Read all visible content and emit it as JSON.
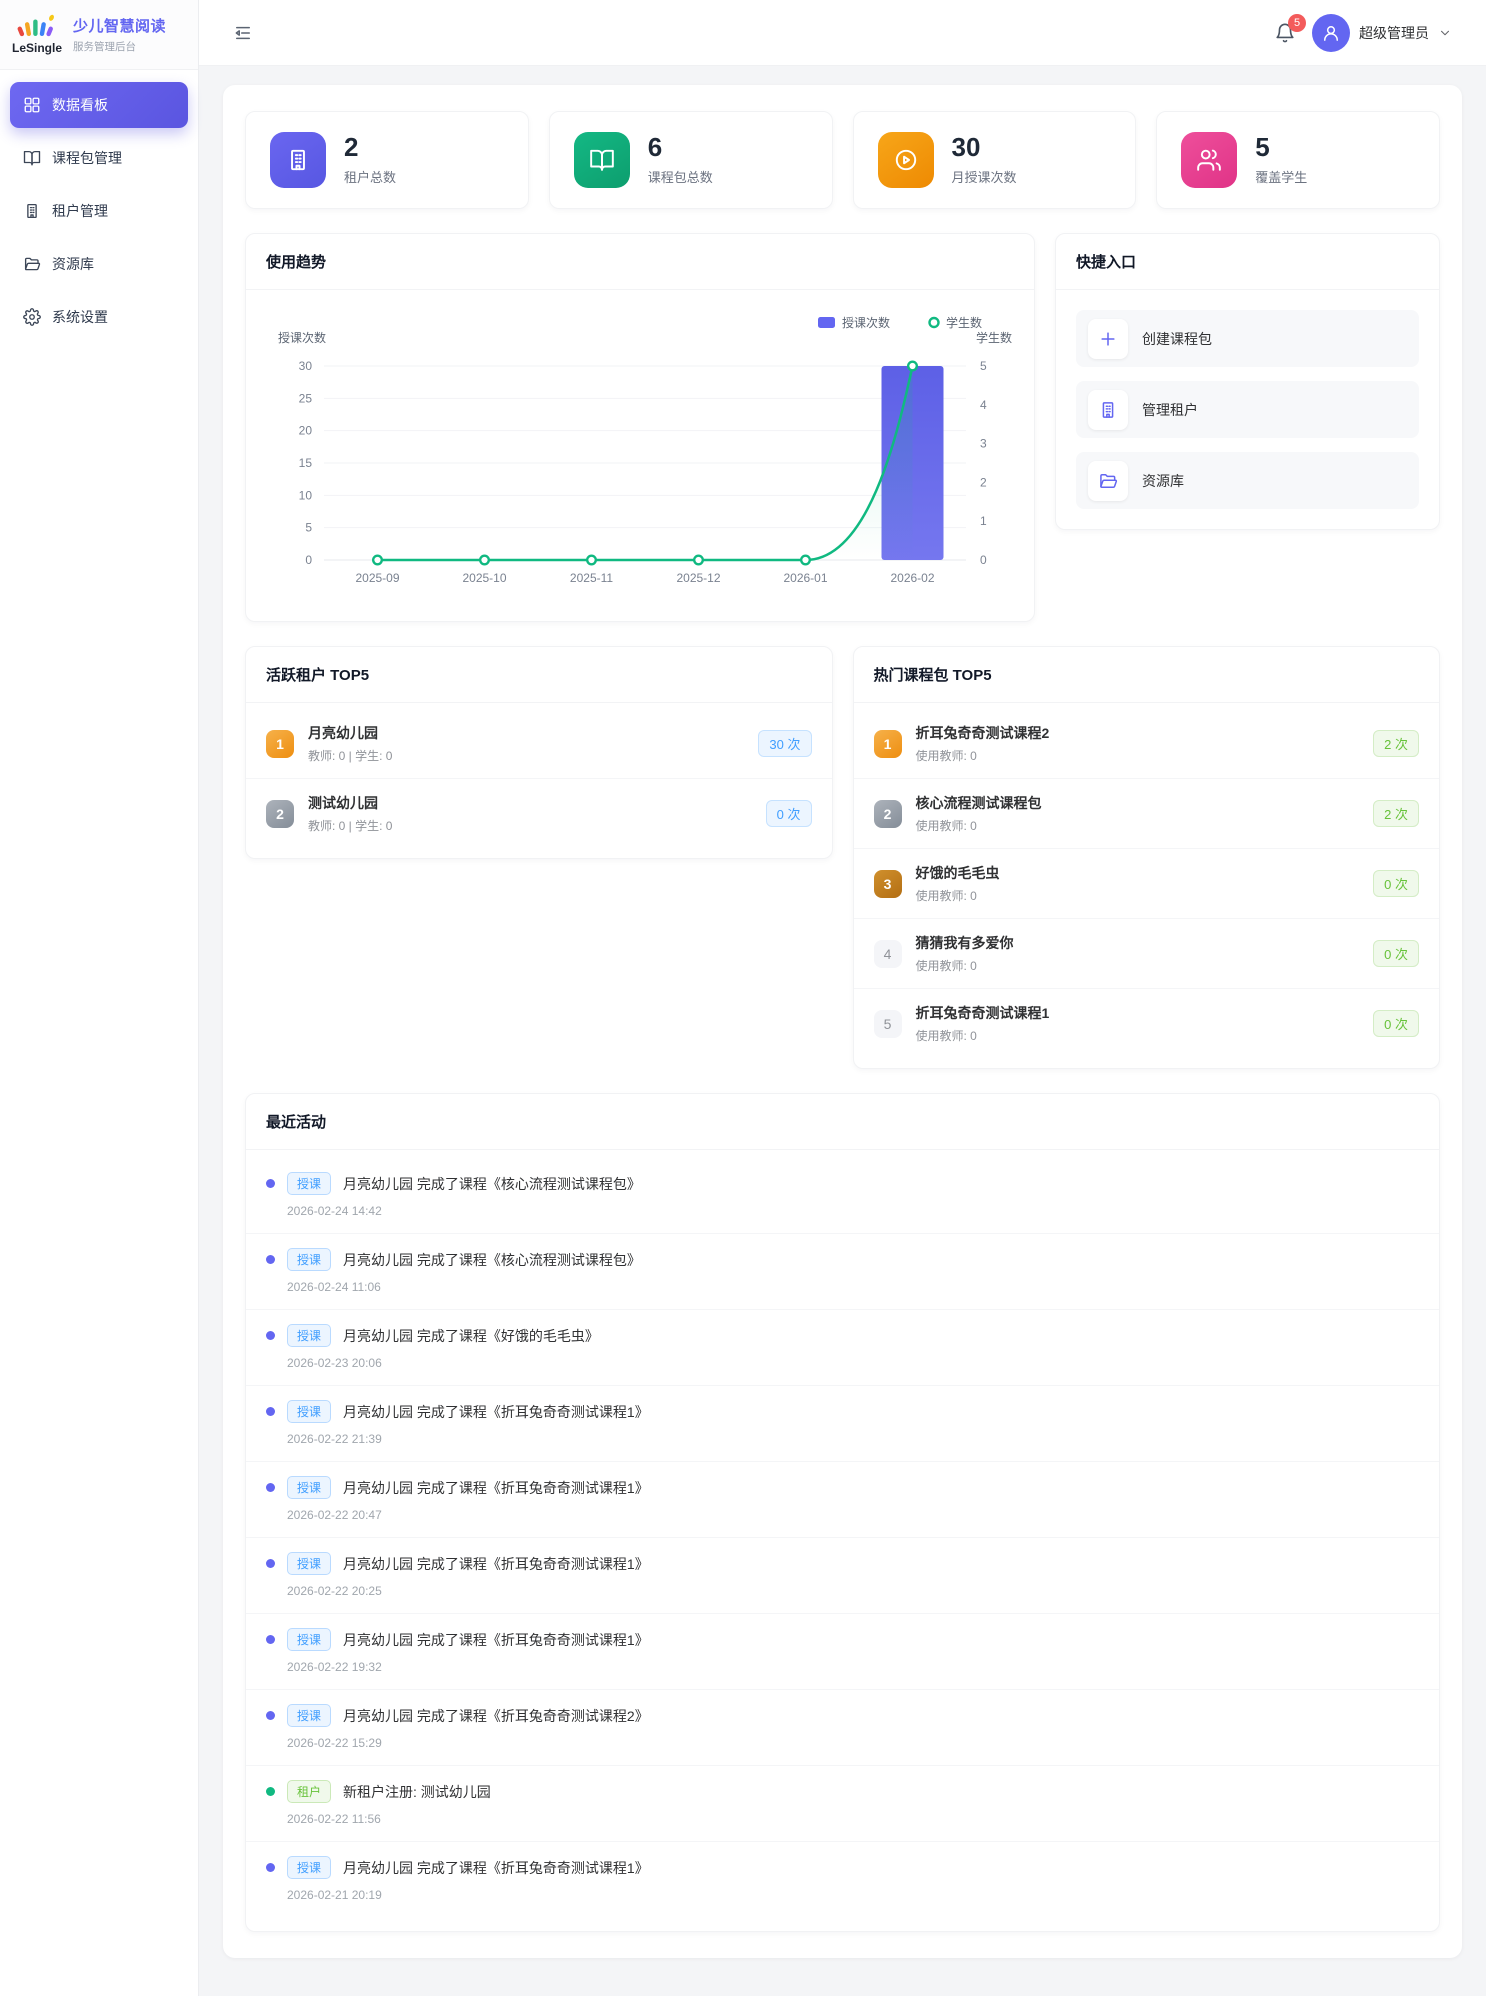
{
  "brand": {
    "logo": "LeSingle",
    "title": "少儿智慧阅读",
    "subtitle": "服务管理后台"
  },
  "sidebar": {
    "items": [
      {
        "label": "数据看板",
        "icon": "dashboard-icon",
        "active": true
      },
      {
        "label": "课程包管理",
        "icon": "book-icon",
        "active": false
      },
      {
        "label": "租户管理",
        "icon": "building-icon",
        "active": false
      },
      {
        "label": "资源库",
        "icon": "folder-icon",
        "active": false
      },
      {
        "label": "系统设置",
        "icon": "gear-icon",
        "active": false
      }
    ]
  },
  "header": {
    "notification_count": "5",
    "user_name": "超级管理员"
  },
  "stats": [
    {
      "value": "2",
      "label": "租户总数",
      "icon": "building-icon",
      "color": "#6a66f0",
      "color2": "#5757e2"
    },
    {
      "value": "6",
      "label": "课程包总数",
      "icon": "book-icon",
      "color": "#14b884",
      "color2": "#0d9e6e"
    },
    {
      "value": "30",
      "label": "月授课次数",
      "icon": "play-circle-icon",
      "color": "#f7a619",
      "color2": "#ee8a02"
    },
    {
      "value": "5",
      "label": "覆盖学生",
      "icon": "users-icon",
      "color": "#ee4f9b",
      "color2": "#e03387"
    }
  ],
  "usage_trend": {
    "title": "使用趋势"
  },
  "chart_data": {
    "type": "bar+line",
    "categories": [
      "2025-09",
      "2025-10",
      "2025-11",
      "2025-12",
      "2026-01",
      "2026-02"
    ],
    "series": [
      {
        "name": "授课次数",
        "type": "bar",
        "axis": "left",
        "values": [
          0,
          0,
          0,
          0,
          0,
          30
        ],
        "color": "#5d60e6",
        "color2": "#7577ef"
      },
      {
        "name": "学生数",
        "type": "line",
        "axis": "right",
        "values": [
          0,
          0,
          0,
          0,
          0,
          5
        ],
        "color": "#10b981"
      }
    ],
    "left_axis": {
      "name": "授课次数",
      "ticks": [
        0,
        5,
        10,
        15,
        20,
        25,
        30
      ],
      "max": 30
    },
    "right_axis": {
      "name": "学生数",
      "ticks": [
        0,
        1,
        2,
        3,
        4,
        5
      ],
      "max": 5
    },
    "legend": [
      "授课次数",
      "学生数"
    ],
    "legend_position": "top-right",
    "grid": true
  },
  "quick_entry": {
    "title": "快捷入口",
    "items": [
      {
        "label": "创建课程包",
        "icon": "plus-icon"
      },
      {
        "label": "管理租户",
        "icon": "building-icon"
      },
      {
        "label": "资源库",
        "icon": "folder-icon"
      }
    ]
  },
  "active_tenants": {
    "title": "活跃租户 TOP5",
    "badge_style": "blue",
    "items": [
      {
        "rank": "1",
        "name": "月亮幼儿园",
        "meta": "教师: 0 | 学生: 0",
        "count": "30 次"
      },
      {
        "rank": "2",
        "name": "测试幼儿园",
        "meta": "教师: 0 | 学生: 0",
        "count": "0 次"
      }
    ]
  },
  "hot_packages": {
    "title": "热门课程包 TOP5",
    "badge_style": "green",
    "items": [
      {
        "rank": "1",
        "name": "折耳兔奇奇测试课程2",
        "meta": "使用教师: 0",
        "count": "2 次"
      },
      {
        "rank": "2",
        "name": "核心流程测试课程包",
        "meta": "使用教师: 0",
        "count": "2 次"
      },
      {
        "rank": "3",
        "name": "好饿的毛毛虫",
        "meta": "使用教师: 0",
        "count": "0 次"
      },
      {
        "rank": "4",
        "name": "猜猜我有多爱你",
        "meta": "使用教师: 0",
        "count": "0 次"
      },
      {
        "rank": "5",
        "name": "折耳兔奇奇测试课程1",
        "meta": "使用教师: 0",
        "count": "0 次"
      }
    ]
  },
  "recent_activities": {
    "title": "最近活动",
    "items": [
      {
        "tag": "授课",
        "type": "teach",
        "text": "月亮幼儿园 完成了课程《核心流程测试课程包》",
        "time": "2026-02-24 14:42"
      },
      {
        "tag": "授课",
        "type": "teach",
        "text": "月亮幼儿园 完成了课程《核心流程测试课程包》",
        "time": "2026-02-24 11:06"
      },
      {
        "tag": "授课",
        "type": "teach",
        "text": "月亮幼儿园 完成了课程《好饿的毛毛虫》",
        "time": "2026-02-23 20:06"
      },
      {
        "tag": "授课",
        "type": "teach",
        "text": "月亮幼儿园 完成了课程《折耳兔奇奇测试课程1》",
        "time": "2026-02-22 21:39"
      },
      {
        "tag": "授课",
        "type": "teach",
        "text": "月亮幼儿园 完成了课程《折耳兔奇奇测试课程1》",
        "time": "2026-02-22 20:47"
      },
      {
        "tag": "授课",
        "type": "teach",
        "text": "月亮幼儿园 完成了课程《折耳兔奇奇测试课程1》",
        "time": "2026-02-22 20:25"
      },
      {
        "tag": "授课",
        "type": "teach",
        "text": "月亮幼儿园 完成了课程《折耳兔奇奇测试课程1》",
        "time": "2026-02-22 19:32"
      },
      {
        "tag": "授课",
        "type": "teach",
        "text": "月亮幼儿园 完成了课程《折耳兔奇奇测试课程2》",
        "time": "2026-02-22 15:29"
      },
      {
        "tag": "租户",
        "type": "tenant",
        "text": "新租户注册: 测试幼儿园",
        "time": "2026-02-22 11:56"
      },
      {
        "tag": "授课",
        "type": "teach",
        "text": "月亮幼儿园 完成了课程《折耳兔奇奇测试课程1》",
        "time": "2026-02-21 20:19"
      }
    ]
  },
  "colors": {
    "primary": "#6366f1",
    "success": "#67c23a",
    "info_blue": "#409eff",
    "line_green": "#10b981",
    "danger": "#f35b5b"
  }
}
